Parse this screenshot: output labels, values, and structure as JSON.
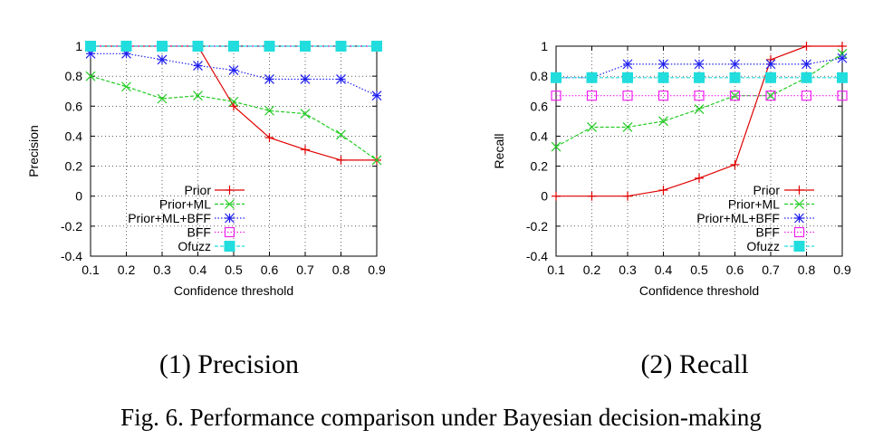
{
  "caption": "Fig. 6.  Performance comparison under Bayesian decision-making",
  "colors": {
    "Prior": "#e00000",
    "Prior+ML": "#22cc22",
    "Prior+ML+BFF": "#2020ee",
    "BFF": "#ee22ee",
    "Ofuzz": "#22dddd"
  },
  "chart_data": [
    {
      "type": "line",
      "subtitle": "(1) Precision",
      "xlabel": "Confidence threshold",
      "ylabel": "Precision",
      "xlim": [
        0.1,
        0.9
      ],
      "ylim": [
        -0.4,
        1
      ],
      "xticks": [
        "0.1",
        "0.2",
        "0.3",
        "0.4",
        "0.5",
        "0.6",
        "0.7",
        "0.8",
        "0.9"
      ],
      "yticks": [
        "1",
        "0.8",
        "0.6",
        "0.4",
        "0.2",
        "0",
        "-0.2",
        "-0.4"
      ],
      "grid": true,
      "legend_position": "bottom-left",
      "x": [
        0.1,
        0.2,
        0.3,
        0.4,
        0.5,
        0.6,
        0.7,
        0.8,
        0.9
      ],
      "series": [
        {
          "name": "Prior",
          "marker": "plus",
          "values": [
            1,
            1,
            1,
            1,
            0.6,
            0.39,
            0.31,
            0.24,
            0.24
          ]
        },
        {
          "name": "Prior+ML",
          "marker": "x",
          "values": [
            0.8,
            0.73,
            0.65,
            0.67,
            0.63,
            0.57,
            0.55,
            0.41,
            0.24
          ]
        },
        {
          "name": "Prior+ML+BFF",
          "marker": "star",
          "values": [
            0.95,
            0.95,
            0.91,
            0.87,
            0.84,
            0.78,
            0.78,
            0.78,
            0.67
          ]
        },
        {
          "name": "BFF",
          "marker": "square-open",
          "values": [
            1,
            1,
            1,
            1,
            1,
            1,
            1,
            1,
            1
          ]
        },
        {
          "name": "Ofuzz",
          "marker": "square-filled",
          "values": [
            1,
            1,
            1,
            1,
            1,
            1,
            1,
            1,
            1
          ]
        }
      ]
    },
    {
      "type": "line",
      "subtitle": "(2) Recall",
      "xlabel": "Confidence threshold",
      "ylabel": "Recall",
      "xlim": [
        0.1,
        0.9
      ],
      "ylim": [
        -0.4,
        1
      ],
      "xticks": [
        "0.1",
        "0.2",
        "0.3",
        "0.4",
        "0.5",
        "0.6",
        "0.7",
        "0.8",
        "0.9"
      ],
      "yticks": [
        "1",
        "0.8",
        "0.6",
        "0.4",
        "0.2",
        "0",
        "-0.2",
        "-0.4"
      ],
      "grid": true,
      "legend_position": "bottom-right",
      "x": [
        0.1,
        0.2,
        0.3,
        0.4,
        0.5,
        0.6,
        0.7,
        0.8,
        0.9
      ],
      "series": [
        {
          "name": "Prior",
          "marker": "plus",
          "values": [
            0,
            0,
            0,
            0.04,
            0.12,
            0.21,
            0.91,
            1,
            1
          ]
        },
        {
          "name": "Prior+ML",
          "marker": "x",
          "values": [
            0.33,
            0.46,
            0.46,
            0.5,
            0.58,
            0.67,
            0.67,
            0.79,
            0.95
          ]
        },
        {
          "name": "Prior+ML+BFF",
          "marker": "star",
          "values": [
            0.79,
            0.79,
            0.88,
            0.88,
            0.88,
            0.88,
            0.88,
            0.88,
            0.92
          ]
        },
        {
          "name": "BFF",
          "marker": "square-open",
          "values": [
            0.67,
            0.67,
            0.67,
            0.67,
            0.67,
            0.67,
            0.67,
            0.67,
            0.67
          ]
        },
        {
          "name": "Ofuzz",
          "marker": "square-filled",
          "values": [
            0.79,
            0.79,
            0.79,
            0.79,
            0.79,
            0.79,
            0.79,
            0.79,
            0.79
          ]
        }
      ]
    }
  ]
}
